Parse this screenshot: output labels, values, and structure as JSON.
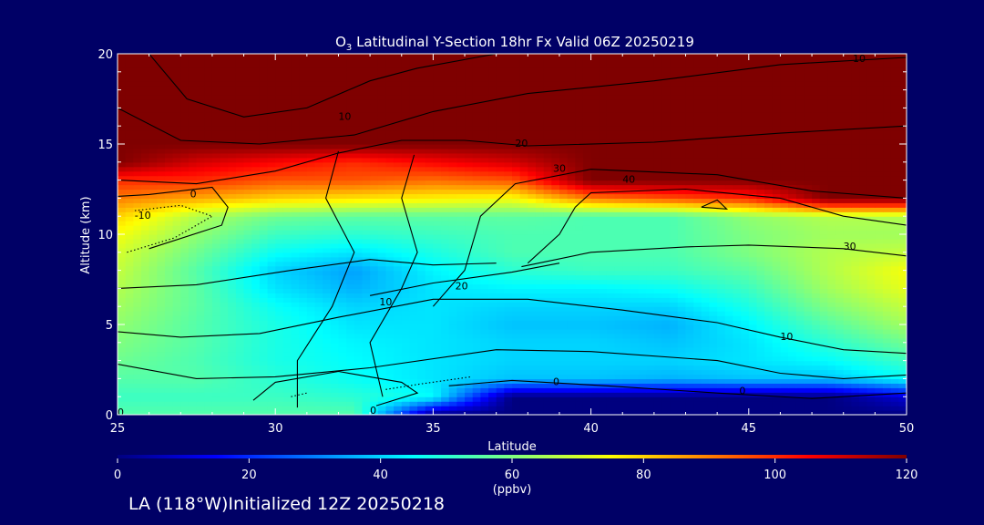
{
  "chart_data": {
    "type": "heatmap",
    "title_prefix": "O",
    "title_subscript": "3",
    "title_suffix": " Latitudinal Y-Section 18hr  Fx Valid 06Z 20250219",
    "xlabel": "Latitude",
    "ylabel": "Altitude (km)",
    "xlim": [
      25,
      50
    ],
    "ylim": [
      0,
      20
    ],
    "xticks": [
      25,
      30,
      35,
      40,
      45,
      50
    ],
    "yticks": [
      0,
      5,
      10,
      15,
      20
    ],
    "colorbar": {
      "range": [
        0,
        120
      ],
      "ticks": [
        0,
        20,
        40,
        60,
        80,
        100,
        120
      ],
      "units": "(ppbv)",
      "colors": [
        "#00007f",
        "#0000ff",
        "#007fff",
        "#00ffff",
        "#7fff7f",
        "#ffff00",
        "#ff7f00",
        "#ff0000",
        "#7f0000"
      ]
    },
    "grid": false,
    "lat": [
      25,
      27.5,
      30,
      32.5,
      35,
      37.5,
      40,
      42.5,
      45,
      47.5,
      50
    ],
    "alt": [
      0,
      1,
      2,
      3,
      4,
      5,
      6,
      7,
      8,
      9,
      10,
      11,
      12,
      13,
      14,
      15,
      16,
      17,
      18,
      19,
      20
    ],
    "ozone_ppbv": [
      [
        55,
        55,
        55,
        55,
        0,
        0,
        0,
        0,
        0,
        0,
        0
      ],
      [
        52,
        52,
        52,
        50,
        45,
        0,
        0,
        0,
        0,
        0,
        10
      ],
      [
        55,
        55,
        50,
        46,
        42,
        38,
        38,
        36,
        38,
        38,
        45
      ],
      [
        58,
        54,
        48,
        45,
        42,
        40,
        40,
        40,
        42,
        45,
        52
      ],
      [
        60,
        55,
        48,
        44,
        42,
        40,
        40,
        38,
        42,
        50,
        58
      ],
      [
        62,
        55,
        48,
        42,
        42,
        38,
        38,
        36,
        44,
        55,
        64
      ],
      [
        64,
        56,
        46,
        40,
        42,
        40,
        40,
        40,
        48,
        60,
        68
      ],
      [
        66,
        56,
        42,
        36,
        42,
        44,
        44,
        46,
        52,
        64,
        72
      ],
      [
        68,
        55,
        40,
        34,
        44,
        50,
        52,
        52,
        56,
        66,
        74
      ],
      [
        70,
        58,
        46,
        42,
        48,
        54,
        54,
        54,
        60,
        66,
        68
      ],
      [
        74,
        62,
        52,
        50,
        52,
        54,
        54,
        54,
        60,
        64,
        64
      ],
      [
        80,
        66,
        58,
        56,
        56,
        56,
        54,
        54,
        62,
        66,
        66
      ],
      [
        90,
        85,
        80,
        78,
        76,
        74,
        90,
        95,
        100,
        120,
        120
      ],
      [
        100,
        100,
        95,
        95,
        92,
        95,
        120,
        120,
        120,
        120,
        120
      ],
      [
        120,
        110,
        105,
        100,
        105,
        110,
        120,
        120,
        120,
        120,
        120
      ],
      [
        120,
        120,
        120,
        120,
        120,
        120,
        120,
        120,
        120,
        120,
        120
      ],
      [
        120,
        120,
        120,
        120,
        120,
        120,
        120,
        120,
        120,
        120,
        120
      ],
      [
        120,
        120,
        120,
        120,
        120,
        120,
        120,
        120,
        120,
        120,
        120
      ],
      [
        120,
        120,
        120,
        120,
        120,
        120,
        120,
        120,
        120,
        120,
        120
      ],
      [
        120,
        120,
        120,
        120,
        120,
        120,
        120,
        120,
        120,
        120,
        120
      ],
      [
        120,
        120,
        120,
        120,
        120,
        120,
        120,
        120,
        120,
        120,
        120
      ]
    ],
    "contour_labels": [
      "10",
      "10",
      "20",
      "30",
      "40",
      "30",
      "10",
      "20",
      "10",
      "0",
      "-10",
      "0",
      "0",
      "0",
      "0"
    ],
    "contour_label_positions": [
      {
        "lat": 48.5,
        "alt": 19.7
      },
      {
        "lat": 32.2,
        "alt": 16.5
      },
      {
        "lat": 37.8,
        "alt": 15.0
      },
      {
        "lat": 39.0,
        "alt": 13.6
      },
      {
        "lat": 41.2,
        "alt": 13.0
      },
      {
        "lat": 48.2,
        "alt": 9.3
      },
      {
        "lat": 33.5,
        "alt": 6.2
      },
      {
        "lat": 35.9,
        "alt": 7.1
      },
      {
        "lat": 46.2,
        "alt": 4.3
      },
      {
        "lat": 27.4,
        "alt": 12.2
      },
      {
        "lat": 25.8,
        "alt": 11.0
      },
      {
        "lat": 33.1,
        "alt": 0.2
      },
      {
        "lat": 38.9,
        "alt": 1.8
      },
      {
        "lat": 44.8,
        "alt": 1.3
      },
      {
        "lat": 25.1,
        "alt": 0.1
      }
    ],
    "contour_lines": [
      [
        [
          26.0,
          20.0
        ],
        [
          27.2,
          17.5
        ],
        [
          29.0,
          16.5
        ],
        [
          31.0,
          17.0
        ],
        [
          33.0,
          18.5
        ],
        [
          34.5,
          19.2
        ],
        [
          37.0,
          20.0
        ]
      ],
      [
        [
          25.0,
          17.0
        ],
        [
          27.0,
          15.2
        ],
        [
          29.5,
          15.0
        ],
        [
          32.5,
          15.5
        ],
        [
          35.0,
          16.8
        ],
        [
          38.0,
          17.8
        ],
        [
          42.0,
          18.5
        ],
        [
          46.0,
          19.4
        ],
        [
          50.0,
          19.8
        ]
      ],
      [
        [
          25.0,
          13.0
        ],
        [
          27.5,
          12.8
        ],
        [
          30.0,
          13.5
        ],
        [
          32.0,
          14.5
        ],
        [
          34.0,
          15.2
        ],
        [
          36.0,
          15.2
        ],
        [
          38.0,
          14.9
        ],
        [
          42.0,
          15.1
        ],
        [
          46.0,
          15.6
        ],
        [
          50.0,
          16.0
        ]
      ],
      [
        [
          30.7,
          0.4
        ],
        [
          30.7,
          3.0
        ],
        [
          31.8,
          6.0
        ],
        [
          32.5,
          9.0
        ],
        [
          31.6,
          12.0
        ],
        [
          32.0,
          14.6
        ]
      ],
      [
        [
          33.4,
          1.0
        ],
        [
          33.0,
          4.0
        ],
        [
          34.0,
          7.0
        ],
        [
          34.5,
          9.0
        ],
        [
          34.0,
          12.0
        ],
        [
          34.4,
          14.4
        ]
      ],
      [
        [
          35.0,
          6.0
        ],
        [
          36.0,
          8.0
        ],
        [
          36.5,
          11.0
        ],
        [
          37.6,
          12.8
        ],
        [
          40.0,
          13.6
        ],
        [
          44.0,
          13.3
        ],
        [
          47.0,
          12.4
        ],
        [
          50.0,
          12.0
        ]
      ],
      [
        [
          38.0,
          8.4
        ],
        [
          39.0,
          10.0
        ],
        [
          39.5,
          11.5
        ],
        [
          40.0,
          12.3
        ],
        [
          43.0,
          12.5
        ],
        [
          46.0,
          12.0
        ],
        [
          48.0,
          11.0
        ],
        [
          50.0,
          10.5
        ]
      ],
      [
        [
          26.0,
          9.2
        ],
        [
          28.3,
          10.5
        ],
        [
          28.5,
          11.5
        ],
        [
          28.0,
          12.6
        ],
        [
          26.0,
          12.2
        ],
        [
          25.0,
          12.1
        ]
      ],
      [
        [
          37.8,
          8.2
        ],
        [
          40.0,
          9.0
        ],
        [
          43.0,
          9.3
        ],
        [
          45.0,
          9.4
        ],
        [
          48.0,
          9.2
        ],
        [
          50.0,
          8.8
        ]
      ],
      [
        [
          33.0,
          6.6
        ],
        [
          35.0,
          7.3
        ],
        [
          37.5,
          7.9
        ],
        [
          39.0,
          8.4
        ]
      ],
      [
        [
          25.0,
          7.0
        ],
        [
          27.5,
          7.2
        ],
        [
          30.5,
          8.0
        ],
        [
          33.0,
          8.6
        ],
        [
          35.0,
          8.3
        ],
        [
          37.0,
          8.4
        ]
      ],
      [
        [
          25.0,
          4.6
        ],
        [
          27.0,
          4.3
        ],
        [
          29.5,
          4.5
        ],
        [
          32.0,
          5.4
        ],
        [
          35.0,
          6.4
        ],
        [
          38.0,
          6.4
        ],
        [
          41.0,
          5.8
        ],
        [
          44.0,
          5.1
        ],
        [
          46.0,
          4.3
        ],
        [
          48.0,
          3.6
        ],
        [
          50.0,
          3.4
        ]
      ],
      [
        [
          25.0,
          2.8
        ],
        [
          27.5,
          2.0
        ],
        [
          30.0,
          2.1
        ],
        [
          33.0,
          2.6
        ],
        [
          37.0,
          3.6
        ],
        [
          40.0,
          3.5
        ],
        [
          44.0,
          3.0
        ],
        [
          46.0,
          2.3
        ],
        [
          48.0,
          2.0
        ],
        [
          50.0,
          2.2
        ]
      ],
      [
        [
          29.3,
          0.8
        ],
        [
          30.0,
          1.8
        ],
        [
          32.0,
          2.4
        ],
        [
          34.0,
          1.8
        ],
        [
          34.5,
          1.2
        ],
        [
          33.2,
          0.5
        ]
      ],
      [
        [
          35.5,
          1.6
        ],
        [
          37.5,
          1.9
        ],
        [
          40.5,
          1.6
        ],
        [
          44.0,
          1.2
        ],
        [
          47.0,
          0.9
        ],
        [
          49.0,
          1.1
        ],
        [
          50.0,
          1.2
        ]
      ],
      [
        [
          43.5,
          11.5
        ],
        [
          44.0,
          11.9
        ],
        [
          44.3,
          11.4
        ],
        [
          43.5,
          11.5
        ]
      ]
    ],
    "dotted_lines": [
      [
        [
          25.3,
          9.0
        ],
        [
          26.8,
          9.8
        ],
        [
          28.0,
          11.0
        ],
        [
          27.0,
          11.6
        ],
        [
          25.5,
          11.3
        ]
      ],
      [
        [
          33.5,
          1.4
        ],
        [
          34.6,
          1.7
        ],
        [
          35.8,
          2.0
        ],
        [
          36.2,
          2.1
        ]
      ],
      [
        [
          30.5,
          1.0
        ],
        [
          31.0,
          1.2
        ]
      ]
    ]
  },
  "footer_text": "LA (118°W)Initialized 12Z 20250218"
}
